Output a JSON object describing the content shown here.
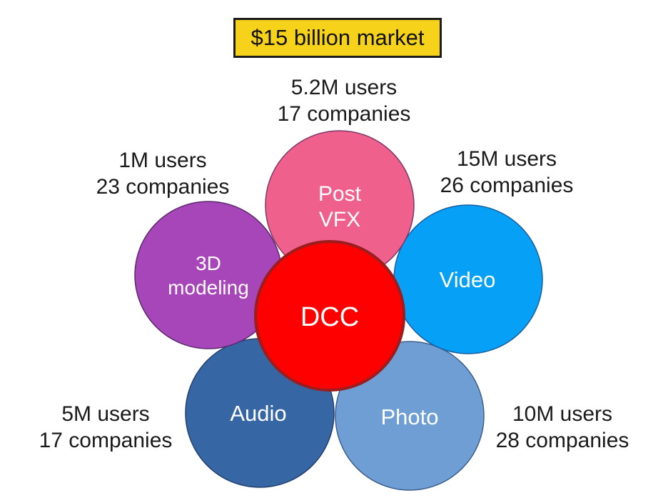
{
  "title": "$15 billion market",
  "center": {
    "label": "DCC",
    "color": "#ff0000",
    "stroke": "#9b1d1d"
  },
  "segments": [
    {
      "id": "post-vfx",
      "lines": [
        "Post",
        "VFX"
      ],
      "color": "#f0608d",
      "stroke": "#7a3a66",
      "stats": {
        "users": "5.2M users",
        "companies": "17 companies"
      }
    },
    {
      "id": "3d-modeling",
      "lines": [
        "3D",
        "modeling"
      ],
      "color": "#a646b8",
      "stroke": "#5c2a70",
      "stats": {
        "users": "1M users",
        "companies": "23 companies"
      }
    },
    {
      "id": "video",
      "lines": [
        "Video"
      ],
      "color": "#06a0f6",
      "stroke": "#1a5fa0",
      "stats": {
        "users": "15M users",
        "companies": "26 companies"
      }
    },
    {
      "id": "audio",
      "lines": [
        "Audio"
      ],
      "color": "#3766a5",
      "stroke": "#22406e",
      "stats": {
        "users": "5M users",
        "companies": "17 companies"
      }
    },
    {
      "id": "photo",
      "lines": [
        "Photo"
      ],
      "color": "#6e9ed4",
      "stroke": "#3d5f8c",
      "stats": {
        "users": "10M users",
        "companies": "28 companies"
      }
    }
  ]
}
